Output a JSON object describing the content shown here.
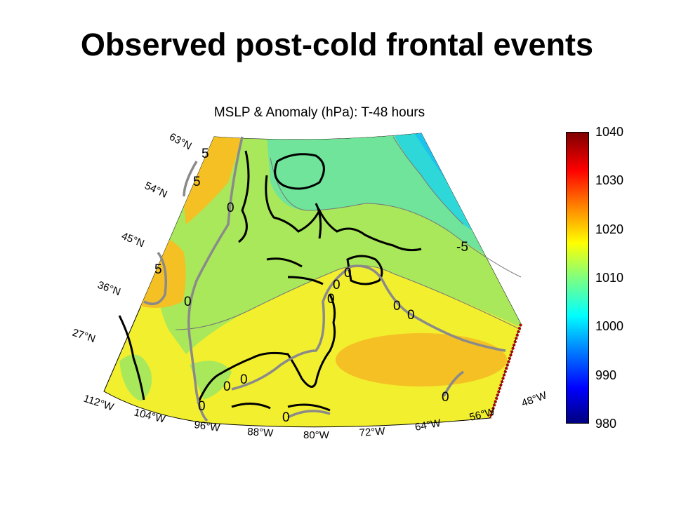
{
  "slide_title": "Observed post-cold frontal events",
  "map": {
    "title": "MSLP & Anomaly (hPa): T-48 hours",
    "colorbar": {
      "ticks": [
        "1040",
        "1030",
        "1020",
        "1010",
        "1000",
        "990",
        "980"
      ],
      "min": 980,
      "max": 1040
    },
    "lat_labels": [
      "63°N",
      "54°N",
      "45°N",
      "36°N",
      "27°N"
    ],
    "lon_labels": [
      "112°W",
      "104°W",
      "96°W",
      "88°W",
      "80°W",
      "72°W",
      "64°W",
      "56°W",
      "48°W"
    ],
    "contour_labels": [
      "5",
      "5",
      "0",
      "-5",
      "5",
      "0",
      "0",
      "0",
      "0",
      "0",
      "0",
      "0",
      "0",
      "0",
      "0",
      "0"
    ]
  }
}
